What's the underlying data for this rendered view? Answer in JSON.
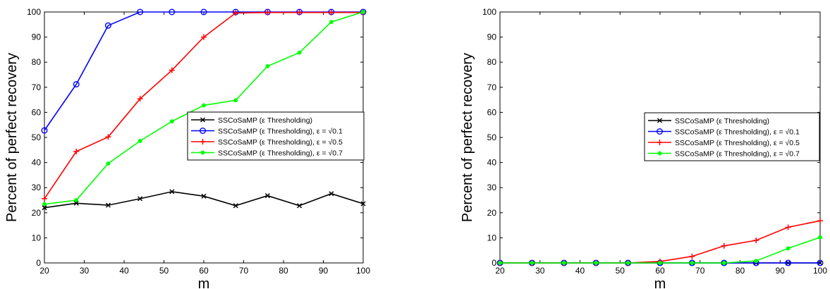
{
  "chart_data": [
    {
      "type": "line",
      "xlabel": "m",
      "ylabel": "Percent of perfect recovery",
      "xlim": [
        20,
        100
      ],
      "ylim": [
        0,
        100
      ],
      "xticks": [
        "20",
        "30",
        "40",
        "50",
        "60",
        "70",
        "80",
        "90",
        "100"
      ],
      "yticks": [
        "0",
        "10",
        "20",
        "30",
        "40",
        "50",
        "60",
        "70",
        "80",
        "90",
        "100"
      ],
      "grid": false,
      "legend_position": "center-right",
      "x": [
        20,
        28,
        36,
        44,
        52,
        60,
        68,
        76,
        84,
        92,
        100
      ],
      "series": [
        {
          "name": "SSCoSaMP (ε Thresholding)",
          "color": "#000000",
          "marker": "x",
          "values": [
            22,
            23.8,
            23,
            25.6,
            28.4,
            26.6,
            22.8,
            26.8,
            22.8,
            27.6,
            23.6
          ]
        },
        {
          "name": "SSCoSaMP (ε Thresholding), ε = √0.1",
          "color": "#0000ff",
          "marker": "o",
          "values": [
            52.8,
            71.2,
            94.6,
            100,
            100,
            100,
            100,
            100,
            100,
            100,
            100
          ]
        },
        {
          "name": "SSCoSaMP (ε Thresholding), ε = √0.5",
          "color": "#ff0000",
          "marker": "+",
          "values": [
            25.6,
            44.4,
            50.2,
            65.4,
            76.8,
            90,
            99.6,
            99.8,
            99.8,
            99.8,
            99.8
          ]
        },
        {
          "name": "SSCoSaMP (ε Thresholding), ε = √0.7",
          "color": "#00ff00",
          "marker": "dot",
          "values": [
            23.4,
            25,
            39.6,
            48.6,
            56.4,
            62.8,
            64.8,
            78.4,
            83.8,
            96,
            100
          ]
        }
      ]
    },
    {
      "type": "line",
      "xlabel": "m",
      "ylabel": "Percent of perfect recovery",
      "xlim": [
        20,
        100
      ],
      "ylim": [
        0,
        100
      ],
      "xticks": [
        "20",
        "30",
        "40",
        "50",
        "60",
        "70",
        "80",
        "90",
        "100"
      ],
      "yticks": [
        "0",
        "10",
        "20",
        "30",
        "40",
        "50",
        "60",
        "70",
        "80",
        "90",
        "100"
      ],
      "grid": false,
      "legend_position": "center-right",
      "x": [
        20,
        28,
        36,
        44,
        52,
        60,
        68,
        76,
        84,
        92,
        100
      ],
      "series": [
        {
          "name": "SSCoSaMP (ε Thresholding)",
          "color": "#000000",
          "marker": "x",
          "values": [
            0,
            0,
            0,
            0,
            0,
            0,
            0,
            0,
            0,
            0,
            0
          ]
        },
        {
          "name": "SSCoSaMP (ε Thresholding), ε = √0.1",
          "color": "#0000ff",
          "marker": "o",
          "values": [
            0,
            0,
            0,
            0,
            0,
            0,
            0,
            0,
            0,
            0,
            0
          ]
        },
        {
          "name": "SSCoSaMP (ε Thresholding), ε = √0.5",
          "color": "#ff0000",
          "marker": "+",
          "values": [
            0,
            0,
            0,
            0,
            0,
            0.6,
            2.6,
            6.8,
            9,
            14.2,
            16.8
          ]
        },
        {
          "name": "SSCoSaMP (ε Thresholding), ε = √0.7",
          "color": "#00ff00",
          "marker": "dot",
          "values": [
            0,
            0,
            0,
            0,
            0,
            0,
            0,
            0,
            0.8,
            5.8,
            10.2
          ]
        }
      ]
    }
  ]
}
